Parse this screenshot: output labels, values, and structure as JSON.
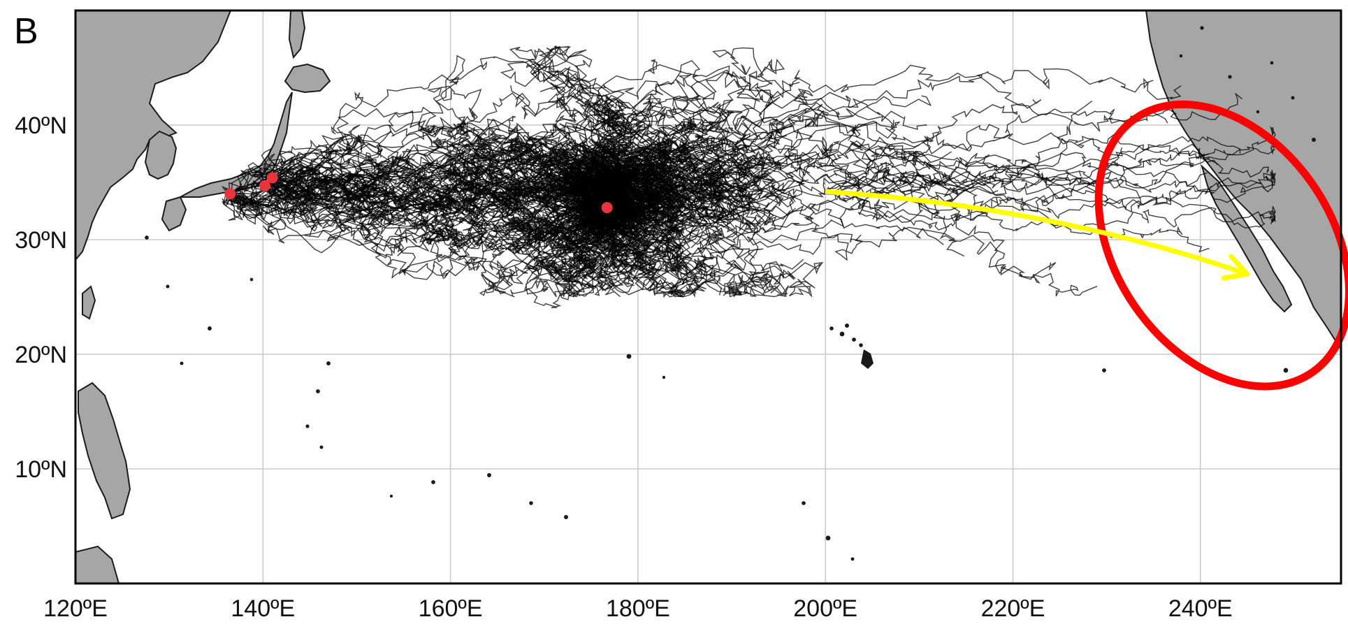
{
  "panel_label": "B",
  "map": {
    "lon_range": [
      120,
      255
    ],
    "lat_range": [
      0,
      50
    ],
    "grid": true,
    "land_color": "#a6a6a6",
    "track_color": "#000000",
    "release_point_color": "#e8343a",
    "arrow_color": "#ffff00",
    "highlight_ellipse_color": "#ff0000",
    "lon_ticks": [
      {
        "value": 120,
        "label": "120ºE"
      },
      {
        "value": 140,
        "label": "140ºE"
      },
      {
        "value": 160,
        "label": "160ºE"
      },
      {
        "value": 180,
        "label": "180ºE"
      },
      {
        "value": 200,
        "label": "200ºE"
      },
      {
        "value": 220,
        "label": "220ºE"
      },
      {
        "value": 240,
        "label": "240ºE"
      }
    ],
    "lat_ticks": [
      {
        "value": 40,
        "label": "40ºN"
      },
      {
        "value": 30,
        "label": "30ºN"
      },
      {
        "value": 20,
        "label": "20ºN"
      },
      {
        "value": 10,
        "label": "10ºN"
      }
    ],
    "release_points": [
      {
        "lon": 136.5,
        "lat": 34.0
      },
      {
        "lon": 140.2,
        "lat": 34.7
      },
      {
        "lon": 141.0,
        "lat": 35.4
      },
      {
        "lon": 176.7,
        "lat": 32.8
      }
    ],
    "arrow": {
      "from": {
        "lon": 200,
        "lat": 34.2
      },
      "to": {
        "lon": 245,
        "lat": 27.0
      }
    },
    "highlight_ellipse": {
      "center": {
        "lon": 242.5,
        "lat": 29.5
      },
      "rx_deg": 11.5,
      "ry_deg": 13.5,
      "rotation_deg": -35
    }
  }
}
